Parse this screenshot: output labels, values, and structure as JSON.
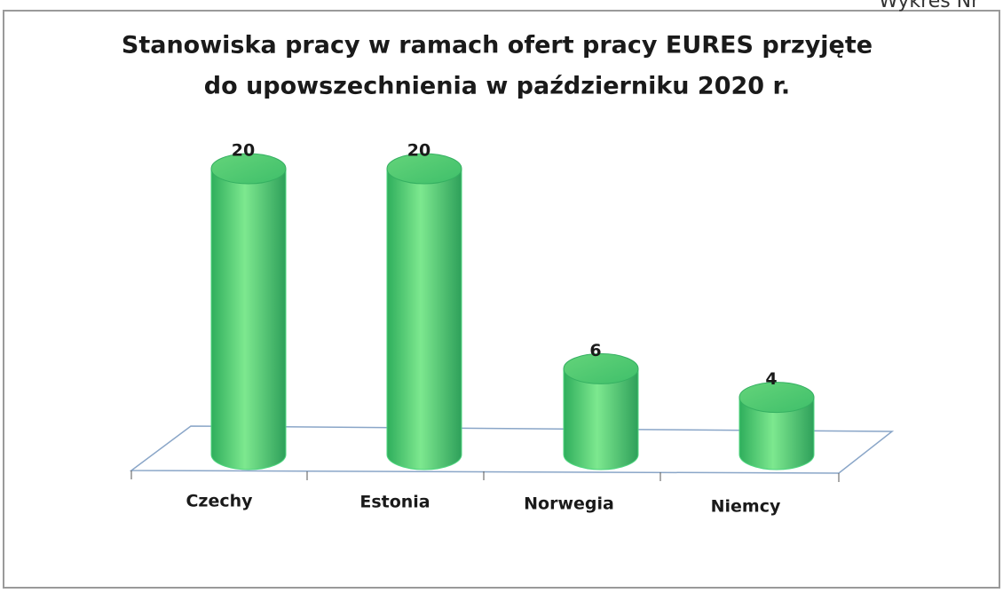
{
  "header": "Wykres Nr",
  "chart_data": {
    "type": "bar3d",
    "title": [
      "Stanowiska pracy w ramach ofert pracy EURES przyjęte",
      "do upowszechnienia w październiku 2020 r."
    ],
    "categories": [
      "Czechy",
      "Estonia",
      "Norwegia",
      "Niemcy"
    ],
    "values": [
      20,
      20,
      6,
      4
    ],
    "color": "#4fd67f",
    "ylim": [
      0,
      20
    ]
  }
}
